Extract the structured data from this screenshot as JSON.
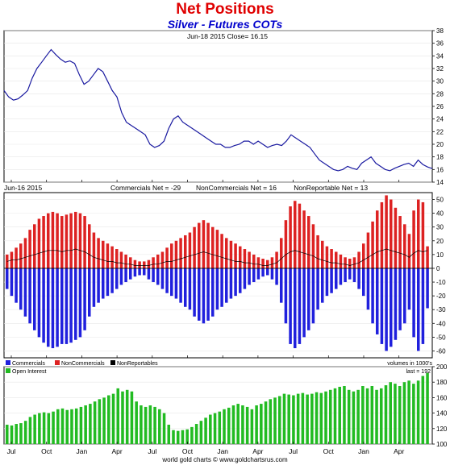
{
  "header": {
    "title": "Net Positions",
    "subtitle": "Silver - Futures COTs"
  },
  "footer": {
    "credit": "world gold charts © www.goldchartsrus.com"
  },
  "colors": {
    "price_line": "#1a1aa0",
    "commercials": "#2020dd",
    "noncommercials": "#dd2222",
    "open_interest": "#22bb22",
    "title_red": "#e00000",
    "subtitle_blue": "#0000cc"
  },
  "chart_data": [
    {
      "type": "line",
      "annotation": "Jun-18  2015    Close= 16.15",
      "ylim": [
        14,
        38
      ],
      "yticks": [
        14,
        16,
        18,
        20,
        22,
        24,
        26,
        28,
        30,
        32,
        34,
        36,
        38
      ],
      "series": [
        {
          "values": [
            28.5,
            27.5,
            27.0,
            27.2,
            27.8,
            28.5,
            30.5,
            32.0,
            33.0,
            34.0,
            35.0,
            34.2,
            33.5,
            33.0,
            33.2,
            32.8,
            31.0,
            29.5,
            30.0,
            31.0,
            32.0,
            31.5,
            30.0,
            28.5,
            27.5,
            25.0,
            23.5,
            23.0,
            22.5,
            22.0,
            21.5,
            20.0,
            19.5,
            19.8,
            20.5,
            22.5,
            24.0,
            24.5,
            23.5,
            23.0,
            22.5,
            22.0,
            21.5,
            21.0,
            20.5,
            20.0,
            20.0,
            19.5,
            19.5,
            19.8,
            20.0,
            20.5,
            20.5,
            20.0,
            20.5,
            20.0,
            19.5,
            19.8,
            20.0,
            19.8,
            20.5,
            21.5,
            21.0,
            20.5,
            20.0,
            19.5,
            18.5,
            17.5,
            17.0,
            16.5,
            16.0,
            15.8,
            16.0,
            16.5,
            16.2,
            16.0,
            17.0,
            17.5,
            18.0,
            17.0,
            16.5,
            16.0,
            15.8,
            16.2,
            16.5,
            16.8,
            17.0,
            16.5,
            17.5,
            16.8,
            16.4,
            16.15
          ]
        }
      ]
    },
    {
      "type": "bar",
      "annotation_left": "Jun-16  2015",
      "annotation_mid": "Commercials Net = -29        NonCommercials Net = 16         NonReportable Net = 13",
      "ylim": [
        -65,
        55
      ],
      "yticks": [
        -60,
        -50,
        -40,
        -30,
        -20,
        -10,
        0,
        10,
        20,
        30,
        40,
        50
      ],
      "legend": [
        "Commercials",
        "NonCommercials",
        "NonReportables"
      ],
      "legend_right": "volumes in 1000's",
      "series": [
        {
          "name": "Commercials",
          "values": [
            -15,
            -20,
            -25,
            -30,
            -35,
            -40,
            -45,
            -50,
            -54,
            -57,
            -58,
            -57,
            -55,
            -55,
            -54,
            -52,
            -50,
            -45,
            -35,
            -28,
            -25,
            -22,
            -20,
            -18,
            -15,
            -12,
            -10,
            -8,
            -6,
            -5,
            -5,
            -8,
            -10,
            -12,
            -15,
            -18,
            -20,
            -22,
            -25,
            -28,
            -30,
            -35,
            -38,
            -40,
            -38,
            -35,
            -30,
            -28,
            -25,
            -22,
            -20,
            -18,
            -15,
            -12,
            -10,
            -8,
            -6,
            -5,
            -8,
            -12,
            -25,
            -40,
            -55,
            -58,
            -55,
            -50,
            -45,
            -40,
            -30,
            -25,
            -20,
            -18,
            -15,
            -12,
            -10,
            -8,
            -10,
            -15,
            -20,
            -30,
            -40,
            -48,
            -55,
            -60,
            -57,
            -52,
            -45,
            -40,
            -30,
            -50,
            -60,
            -55,
            -29
          ]
        },
        {
          "name": "NonCommercials",
          "values": [
            10,
            12,
            15,
            18,
            22,
            28,
            32,
            36,
            38,
            40,
            41,
            40,
            38,
            39,
            40,
            41,
            40,
            38,
            32,
            26,
            22,
            20,
            18,
            16,
            14,
            12,
            10,
            8,
            6,
            5,
            5,
            6,
            8,
            10,
            12,
            15,
            18,
            20,
            22,
            24,
            26,
            30,
            33,
            35,
            33,
            30,
            28,
            25,
            22,
            20,
            18,
            16,
            14,
            12,
            10,
            8,
            7,
            6,
            8,
            12,
            22,
            35,
            45,
            49,
            47,
            42,
            38,
            32,
            24,
            20,
            16,
            14,
            12,
            10,
            8,
            7,
            8,
            12,
            18,
            26,
            34,
            42,
            48,
            53,
            50,
            44,
            38,
            32,
            25,
            42,
            50,
            48,
            16
          ]
        },
        {
          "name": "NonReportables",
          "values": [
            5,
            6,
            6,
            7,
            8,
            9,
            10,
            11,
            12,
            13,
            13,
            13,
            12,
            13,
            13,
            14,
            13,
            12,
            10,
            8,
            7,
            6,
            5,
            5,
            4,
            4,
            3,
            3,
            2,
            2,
            2,
            2,
            3,
            3,
            4,
            5,
            5,
            6,
            7,
            8,
            9,
            10,
            11,
            12,
            11,
            10,
            9,
            8,
            7,
            6,
            5,
            5,
            4,
            4,
            3,
            3,
            2,
            2,
            3,
            4,
            7,
            10,
            12,
            13,
            12,
            11,
            10,
            9,
            7,
            6,
            5,
            4,
            4,
            3,
            3,
            2,
            3,
            4,
            6,
            8,
            10,
            12,
            13,
            14,
            13,
            12,
            11,
            10,
            8,
            11,
            13,
            12,
            13
          ]
        }
      ]
    },
    {
      "type": "bar",
      "legend": [
        "Open Interest"
      ],
      "annotation_right": "last = 192",
      "ylim": [
        100,
        200
      ],
      "yticks": [
        100,
        120,
        140,
        160,
        180,
        200
      ],
      "xticks": [
        "Jul",
        "Oct",
        "Jan",
        "Apr",
        "Jul",
        "Oct",
        "Jan",
        "Apr",
        "Jul",
        "Oct",
        "Jan",
        "Apr"
      ],
      "series": [
        {
          "name": "Open Interest",
          "values": [
            125,
            124,
            126,
            127,
            130,
            135,
            138,
            140,
            141,
            140,
            142,
            145,
            146,
            144,
            145,
            146,
            148,
            150,
            152,
            155,
            158,
            160,
            163,
            165,
            172,
            168,
            170,
            168,
            155,
            150,
            148,
            150,
            148,
            145,
            140,
            125,
            118,
            117,
            118,
            119,
            122,
            126,
            130,
            134,
            138,
            140,
            142,
            145,
            147,
            150,
            152,
            150,
            148,
            145,
            150,
            152,
            155,
            158,
            160,
            162,
            165,
            164,
            163,
            165,
            166,
            164,
            165,
            167,
            166,
            168,
            170,
            172,
            174,
            175,
            170,
            168,
            170,
            175,
            172,
            175,
            170,
            172,
            176,
            180,
            178,
            175,
            180,
            182,
            178,
            182,
            188,
            192
          ]
        }
      ]
    }
  ]
}
